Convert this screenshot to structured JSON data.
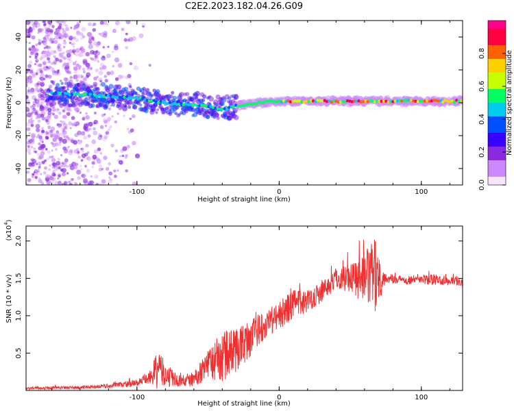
{
  "title": "C2E2.2023.182.04.26.G09",
  "colors": {
    "snr_line": "#f03030",
    "colorbar": [
      "#f5e6ff",
      "#cc88ff",
      "#8a2be2",
      "#3a00ff",
      "#0050ff",
      "#00ccee",
      "#00ff60",
      "#c8ff00",
      "#ffd000",
      "#ff6000",
      "#ff0040",
      "#ff0090"
    ]
  },
  "chart_data": [
    {
      "type": "heatmap",
      "xlabel": "Height of straight line (km)",
      "ylabel": "Frequency (Hz)",
      "xlim": [
        -178,
        129
      ],
      "ylim": [
        -50,
        50
      ],
      "xticks": [
        -100,
        0,
        100
      ],
      "yticks": [
        -40,
        -20,
        0,
        20,
        40
      ],
      "colorbar": {
        "label": "Normalized spectral amplitude",
        "range": [
          0,
          1
        ],
        "ticks": [
          "0.0",
          "0.2",
          "0.4",
          "0.6",
          "0.8"
        ]
      },
      "centerline": [
        {
          "x": -160,
          "y": 6
        },
        {
          "x": -140,
          "y": 5
        },
        {
          "x": -120,
          "y": 4
        },
        {
          "x": -100,
          "y": 3
        },
        {
          "x": -90,
          "y": 1
        },
        {
          "x": -80,
          "y": 0
        },
        {
          "x": -70,
          "y": -1
        },
        {
          "x": -60,
          "y": -1
        },
        {
          "x": -50,
          "y": -2
        },
        {
          "x": -40,
          "y": -4
        },
        {
          "x": -30,
          "y": -2
        },
        {
          "x": -25,
          "y": -1
        },
        {
          "x": -15,
          "y": 0
        },
        {
          "x": 0,
          "y": 1
        },
        {
          "x": 20,
          "y": 1
        },
        {
          "x": 40,
          "y": 1
        },
        {
          "x": 60,
          "y": 1
        },
        {
          "x": 80,
          "y": 1
        },
        {
          "x": 100,
          "y": 1
        },
        {
          "x": 129,
          "y": 1
        }
      ]
    },
    {
      "type": "line",
      "xlabel": "Height of straight line (km)",
      "ylabel": "SNR (10 * v/v)",
      "y_multiplier": "(x10",
      "y_multiplier_exp": "4",
      "y_multiplier_close": ")",
      "xlim": [
        -178,
        129
      ],
      "ylim": [
        0,
        2.2
      ],
      "xticks": [
        -100,
        0,
        100
      ],
      "yticks": [
        0.5,
        1.0,
        1.5,
        2.0
      ],
      "ytick_labels": [
        "0.5",
        "1.0",
        "1.5",
        "2.0"
      ],
      "envelope": [
        {
          "x": -178,
          "mean": 0.03,
          "amp": 0.02
        },
        {
          "x": -140,
          "mean": 0.04,
          "amp": 0.02
        },
        {
          "x": -120,
          "mean": 0.06,
          "amp": 0.03
        },
        {
          "x": -100,
          "mean": 0.1,
          "amp": 0.05
        },
        {
          "x": -90,
          "mean": 0.18,
          "amp": 0.1
        },
        {
          "x": -85,
          "mean": 0.3,
          "amp": 0.3
        },
        {
          "x": -80,
          "mean": 0.2,
          "amp": 0.15
        },
        {
          "x": -70,
          "mean": 0.12,
          "amp": 0.08
        },
        {
          "x": -60,
          "mean": 0.15,
          "amp": 0.1
        },
        {
          "x": -50,
          "mean": 0.35,
          "amp": 0.2
        },
        {
          "x": -40,
          "mean": 0.45,
          "amp": 0.35
        },
        {
          "x": -30,
          "mean": 0.55,
          "amp": 0.3
        },
        {
          "x": -20,
          "mean": 0.7,
          "amp": 0.25
        },
        {
          "x": -10,
          "mean": 0.9,
          "amp": 0.2
        },
        {
          "x": 0,
          "mean": 1.0,
          "amp": 0.2
        },
        {
          "x": 10,
          "mean": 1.15,
          "amp": 0.2
        },
        {
          "x": 20,
          "mean": 1.2,
          "amp": 0.15
        },
        {
          "x": 30,
          "mean": 1.32,
          "amp": 0.15
        },
        {
          "x": 40,
          "mean": 1.5,
          "amp": 0.15
        },
        {
          "x": 50,
          "mean": 1.52,
          "amp": 0.2
        },
        {
          "x": 60,
          "mean": 1.5,
          "amp": 0.35
        },
        {
          "x": 68,
          "mean": 1.55,
          "amp": 0.5
        },
        {
          "x": 75,
          "mean": 1.5,
          "amp": 0.06
        },
        {
          "x": 90,
          "mean": 1.48,
          "amp": 0.06
        },
        {
          "x": 110,
          "mean": 1.48,
          "amp": 0.07
        },
        {
          "x": 129,
          "mean": 1.45,
          "amp": 0.06
        }
      ]
    }
  ]
}
